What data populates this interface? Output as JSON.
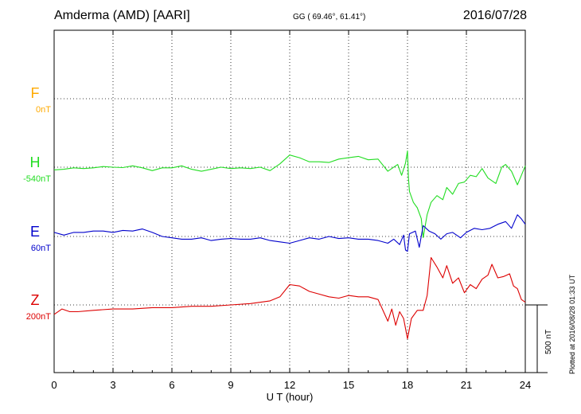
{
  "header": {
    "station": "Amderma (AMD)  [AARI]",
    "coords": "GG ( 69.46°,  61.41°)",
    "date": "2016/07/28"
  },
  "plotted_note": "Plotted at 2016/08/28 01:33 UT",
  "scale_label": "500 nT",
  "colors": {
    "F": "#ffaa00",
    "H": "#22dd22",
    "E": "#0000cc",
    "Z": "#dd0000"
  },
  "chart_data": {
    "type": "line",
    "xlabel": "U T (hour)",
    "xlim": [
      0,
      24
    ],
    "xticks": [
      "0",
      "3",
      "6",
      "9",
      "12",
      "15",
      "18",
      "21",
      "24"
    ],
    "channels": [
      {
        "name": "F",
        "offset_label": "0nT",
        "values": []
      },
      {
        "name": "H",
        "offset_label": "-540nT",
        "values": [
          [
            0,
            -20
          ],
          [
            0.5,
            -15
          ],
          [
            1,
            -5
          ],
          [
            1.5,
            -10
          ],
          [
            2,
            -5
          ],
          [
            2.5,
            5
          ],
          [
            3,
            0
          ],
          [
            3.5,
            -3
          ],
          [
            4,
            10
          ],
          [
            4.5,
            -5
          ],
          [
            5,
            -25
          ],
          [
            5.5,
            -5
          ],
          [
            6,
            -5
          ],
          [
            6.5,
            10
          ],
          [
            7,
            -15
          ],
          [
            7.5,
            -30
          ],
          [
            8,
            -15
          ],
          [
            8.5,
            0
          ],
          [
            9,
            -10
          ],
          [
            9.5,
            -5
          ],
          [
            10,
            -10
          ],
          [
            10.5,
            0
          ],
          [
            11,
            -25
          ],
          [
            11.5,
            25
          ],
          [
            12,
            90
          ],
          [
            12.5,
            70
          ],
          [
            13,
            40
          ],
          [
            13.5,
            40
          ],
          [
            14,
            35
          ],
          [
            14.5,
            60
          ],
          [
            15,
            70
          ],
          [
            15.5,
            80
          ],
          [
            16,
            55
          ],
          [
            16.5,
            60
          ],
          [
            17,
            -30
          ],
          [
            17.5,
            20
          ],
          [
            17.7,
            -60
          ],
          [
            17.9,
            30
          ],
          [
            18,
            120
          ],
          [
            18.05,
            -80
          ],
          [
            18.1,
            -180
          ],
          [
            18.3,
            -260
          ],
          [
            18.5,
            -300
          ],
          [
            18.7,
            -380
          ],
          [
            18.8,
            -520
          ],
          [
            19,
            -350
          ],
          [
            19.2,
            -260
          ],
          [
            19.5,
            -210
          ],
          [
            19.8,
            -240
          ],
          [
            20,
            -150
          ],
          [
            20.3,
            -200
          ],
          [
            20.6,
            -120
          ],
          [
            20.9,
            -110
          ],
          [
            21.2,
            -60
          ],
          [
            21.5,
            -70
          ],
          [
            21.8,
            -10
          ],
          [
            22.1,
            -80
          ],
          [
            22.5,
            -120
          ],
          [
            22.8,
            0
          ],
          [
            23,
            20
          ],
          [
            23.3,
            -30
          ],
          [
            23.6,
            -130
          ],
          [
            23.8,
            -60
          ],
          [
            24,
            10
          ]
        ]
      },
      {
        "name": "E",
        "offset_label": "60nT",
        "values": [
          [
            0,
            30
          ],
          [
            0.5,
            10
          ],
          [
            1,
            30
          ],
          [
            1.5,
            30
          ],
          [
            2,
            40
          ],
          [
            2.5,
            40
          ],
          [
            3,
            30
          ],
          [
            3.5,
            45
          ],
          [
            4,
            40
          ],
          [
            4.5,
            55
          ],
          [
            5,
            30
          ],
          [
            5.5,
            0
          ],
          [
            6,
            -10
          ],
          [
            6.5,
            -20
          ],
          [
            7,
            -20
          ],
          [
            7.5,
            -10
          ],
          [
            8,
            -30
          ],
          [
            8.5,
            -20
          ],
          [
            9,
            -15
          ],
          [
            9.5,
            -20
          ],
          [
            10,
            -20
          ],
          [
            10.5,
            -10
          ],
          [
            11,
            -30
          ],
          [
            11.5,
            -40
          ],
          [
            12,
            -50
          ],
          [
            12.5,
            -30
          ],
          [
            13,
            -10
          ],
          [
            13.5,
            -20
          ],
          [
            14,
            0
          ],
          [
            14.5,
            -15
          ],
          [
            15,
            -10
          ],
          [
            15.5,
            -20
          ],
          [
            16,
            -20
          ],
          [
            16.5,
            -30
          ],
          [
            17,
            -50
          ],
          [
            17.3,
            -20
          ],
          [
            17.6,
            -60
          ],
          [
            17.8,
            10
          ],
          [
            17.9,
            -100
          ],
          [
            18,
            -110
          ],
          [
            18.1,
            20
          ],
          [
            18.4,
            40
          ],
          [
            18.6,
            -80
          ],
          [
            18.8,
            80
          ],
          [
            19.1,
            40
          ],
          [
            19.4,
            20
          ],
          [
            19.7,
            -20
          ],
          [
            20,
            20
          ],
          [
            20.3,
            30
          ],
          [
            20.7,
            -10
          ],
          [
            21,
            30
          ],
          [
            21.4,
            60
          ],
          [
            21.8,
            50
          ],
          [
            22.2,
            60
          ],
          [
            22.6,
            90
          ],
          [
            23,
            110
          ],
          [
            23.3,
            60
          ],
          [
            23.6,
            160
          ],
          [
            23.8,
            130
          ],
          [
            24,
            90
          ]
        ]
      },
      {
        "name": "Z",
        "offset_label": "200nT",
        "values": [
          [
            0,
            -70
          ],
          [
            0.4,
            -30
          ],
          [
            0.8,
            -50
          ],
          [
            1.2,
            -50
          ],
          [
            2,
            -40
          ],
          [
            3,
            -30
          ],
          [
            4,
            -30
          ],
          [
            5,
            -20
          ],
          [
            6,
            -20
          ],
          [
            7,
            -10
          ],
          [
            8,
            -10
          ],
          [
            9,
            0
          ],
          [
            10,
            10
          ],
          [
            11,
            30
          ],
          [
            11.5,
            60
          ],
          [
            12,
            150
          ],
          [
            12.5,
            140
          ],
          [
            13,
            100
          ],
          [
            13.5,
            80
          ],
          [
            14,
            60
          ],
          [
            14.5,
            50
          ],
          [
            15,
            70
          ],
          [
            15.5,
            60
          ],
          [
            16,
            60
          ],
          [
            16.5,
            40
          ],
          [
            17,
            -120
          ],
          [
            17.2,
            -30
          ],
          [
            17.4,
            -150
          ],
          [
            17.6,
            -50
          ],
          [
            17.8,
            -100
          ],
          [
            18,
            -250
          ],
          [
            18.2,
            -100
          ],
          [
            18.5,
            -40
          ],
          [
            18.8,
            -40
          ],
          [
            19,
            70
          ],
          [
            19.2,
            350
          ],
          [
            19.5,
            280
          ],
          [
            19.8,
            200
          ],
          [
            20,
            290
          ],
          [
            20.3,
            160
          ],
          [
            20.6,
            200
          ],
          [
            20.9,
            90
          ],
          [
            21.2,
            150
          ],
          [
            21.5,
            120
          ],
          [
            21.8,
            190
          ],
          [
            22.1,
            220
          ],
          [
            22.3,
            300
          ],
          [
            22.6,
            200
          ],
          [
            22.9,
            210
          ],
          [
            23.2,
            230
          ],
          [
            23.4,
            140
          ],
          [
            23.6,
            120
          ],
          [
            23.8,
            40
          ],
          [
            24,
            20
          ]
        ]
      }
    ]
  }
}
